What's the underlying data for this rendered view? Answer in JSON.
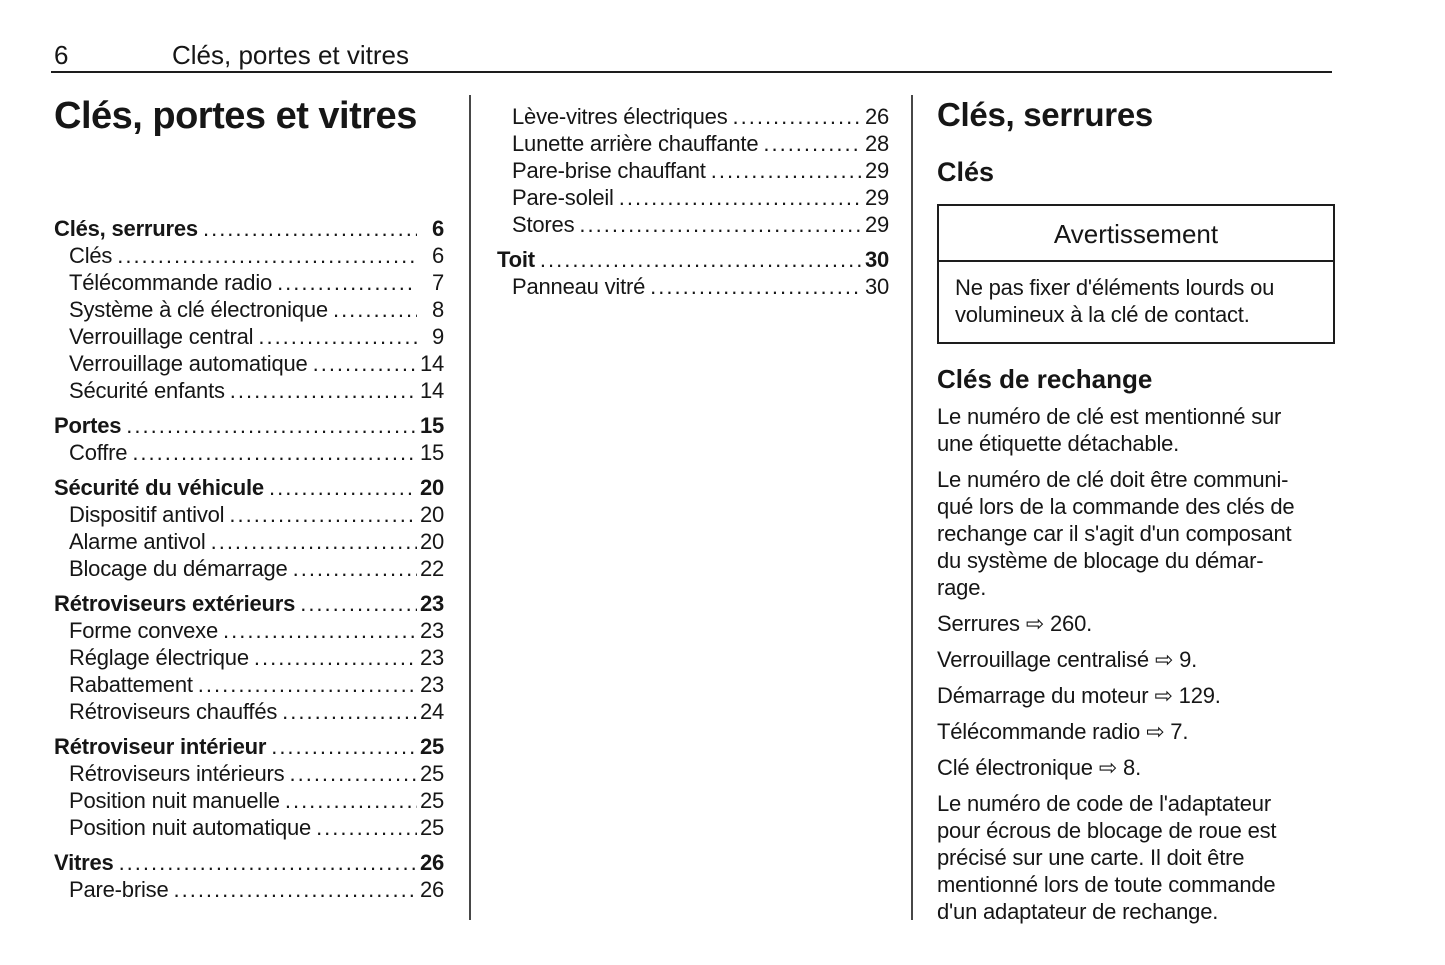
{
  "header": {
    "page_number": "6",
    "title": "Clés, portes et vitres"
  },
  "left_column": {
    "title": "Clés, portes et vitres",
    "toc": [
      {
        "label": "Clés, serrures",
        "page": "6",
        "level": "section"
      },
      {
        "label": "Clés",
        "page": "6",
        "level": "sub"
      },
      {
        "label": "Télécommande radio",
        "page": "7",
        "level": "sub"
      },
      {
        "label": "Système à clé électronique",
        "page": "8",
        "level": "sub"
      },
      {
        "label": "Verrouillage central",
        "page": "9",
        "level": "sub"
      },
      {
        "label": "Verrouillage automatique",
        "page": "14",
        "level": "sub"
      },
      {
        "label": "Sécurité enfants",
        "page": "14",
        "level": "sub"
      },
      {
        "label": "Portes",
        "page": "15",
        "level": "section"
      },
      {
        "label": "Coffre",
        "page": "15",
        "level": "sub"
      },
      {
        "label": "Sécurité du véhicule",
        "page": "20",
        "level": "section"
      },
      {
        "label": "Dispositif antivol",
        "page": "20",
        "level": "sub"
      },
      {
        "label": "Alarme antivol",
        "page": "20",
        "level": "sub"
      },
      {
        "label": "Blocage du démarrage",
        "page": "22",
        "level": "sub"
      },
      {
        "label": "Rétroviseurs extérieurs",
        "page": "23",
        "level": "section"
      },
      {
        "label": "Forme convexe",
        "page": "23",
        "level": "sub"
      },
      {
        "label": "Réglage électrique",
        "page": "23",
        "level": "sub"
      },
      {
        "label": "Rabattement",
        "page": "23",
        "level": "sub"
      },
      {
        "label": "Rétroviseurs chauffés",
        "page": "24",
        "level": "sub"
      },
      {
        "label": "Rétroviseur intérieur",
        "page": "25",
        "level": "section"
      },
      {
        "label": "Rétroviseurs intérieurs",
        "page": "25",
        "level": "sub"
      },
      {
        "label": "Position nuit manuelle",
        "page": "25",
        "level": "sub"
      },
      {
        "label": "Position nuit automatique",
        "page": "25",
        "level": "sub"
      },
      {
        "label": "Vitres",
        "page": "26",
        "level": "section"
      },
      {
        "label": "Pare-brise",
        "page": "26",
        "level": "sub"
      }
    ]
  },
  "middle_column": {
    "toc": [
      {
        "label": "Lève-vitres électriques",
        "page": "26",
        "level": "sub"
      },
      {
        "label": "Lunette arrière chauffante",
        "page": "28",
        "level": "sub"
      },
      {
        "label": "Pare-brise chauffant",
        "page": "29",
        "level": "sub"
      },
      {
        "label": "Pare-soleil",
        "page": "29",
        "level": "sub"
      },
      {
        "label": "Stores",
        "page": "29",
        "level": "sub"
      },
      {
        "label": "Toit",
        "page": "30",
        "level": "section"
      },
      {
        "label": "Panneau vitré",
        "page": "30",
        "level": "sub"
      }
    ]
  },
  "right_column": {
    "heading": "Clés, serrures",
    "subheading": "Clés",
    "warning_box": {
      "title": "Avertissement",
      "body": "Ne pas fixer d'éléments lourds ou\nvolumineux à la clé de contact."
    },
    "subsection": {
      "title": "Clés de rechange",
      "paragraph_1": "Le numéro de clé est mentionné sur\nune étiquette détachable.",
      "paragraph_2": "Le numéro de clé doit être communi-\nqué lors de la commande des clés de\nrechange car il s'agit d'un composant\ndu système de blocage du démar-\nrage.",
      "reference_arrow_icon": "⇨",
      "references": [
        {
          "label": "Serrures",
          "page": "260."
        },
        {
          "label": "Verrouillage centralisé",
          "page": "9."
        },
        {
          "label": "Démarrage du moteur",
          "page": "129."
        },
        {
          "label": "Télécommande radio",
          "page": "7."
        },
        {
          "label": "Clé électronique",
          "page": "8."
        }
      ],
      "paragraph_3": "Le numéro de code de l'adaptateur\npour écrous de blocage de roue est\nprécisé sur une carte. Il doit être\nmentionné lors de toute commande\nd'un adaptateur de rechange."
    }
  },
  "colors": {
    "text": "#161616",
    "rule": "#1d1d1d",
    "divider": "#474747",
    "background": "#ffffff"
  }
}
